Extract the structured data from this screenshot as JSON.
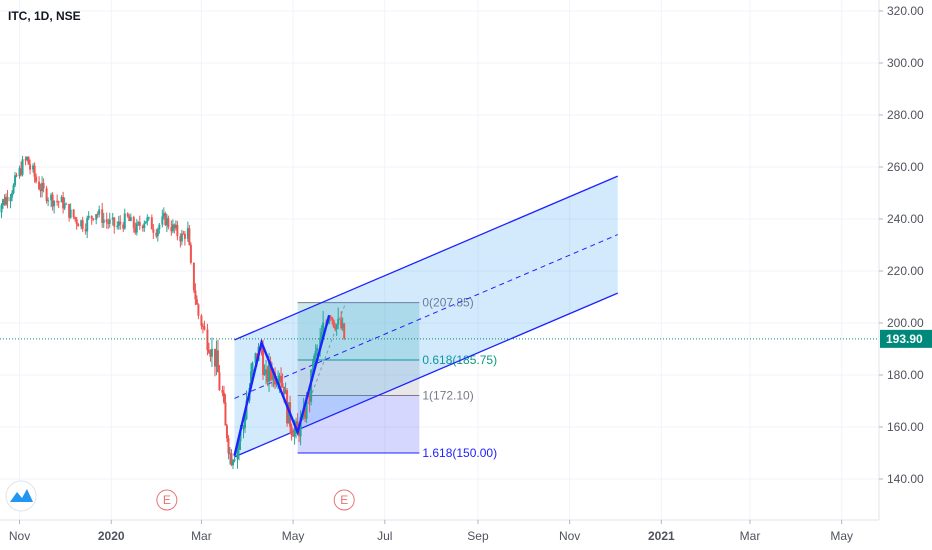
{
  "header": {
    "symbol": "ITC, 1D, NSE"
  },
  "colors": {
    "up": "#26a69a",
    "down": "#ef5350",
    "channel": "#1e22ff",
    "channel_fill": "#cde6fb",
    "pattern": "#1e22ff",
    "fib_0": "#787b86",
    "fib_0618": "#089981",
    "fib_1": "#787b86",
    "fib_1618": "#1e22ff",
    "last_price": "#00897b",
    "earnings": "#e57373"
  },
  "chart_data": {
    "type": "candlestick",
    "ylim": [
      125,
      325
    ],
    "y_ticks": [
      "320.00",
      "300.00",
      "280.00",
      "260.00",
      "240.00",
      "220.00",
      "200.00",
      "180.00",
      "160.00",
      "140.00"
    ],
    "y_tick_values": [
      320,
      300,
      280,
      260,
      240,
      220,
      200,
      180,
      160,
      140
    ],
    "x_ticks": [
      "Nov",
      "2020",
      "Mar",
      "May",
      "Jul",
      "Sep",
      "Nov",
      "2021",
      "Mar",
      "May"
    ],
    "x_tick_dates": [
      "2019-11-01",
      "2020-01-01",
      "2020-03-01",
      "2020-05-01",
      "2020-07-01",
      "2020-09-01",
      "2020-11-01",
      "2021-01-01",
      "2021-03-01",
      "2021-05-01"
    ],
    "xlim": [
      "2019-10-15",
      "2021-06-15"
    ],
    "last_price": {
      "value": 193.9,
      "label": "193.90"
    },
    "close_series": [
      {
        "date": "2019-10-16",
        "close": 243
      },
      {
        "date": "2019-10-22",
        "close": 247
      },
      {
        "date": "2019-10-28",
        "close": 252
      },
      {
        "date": "2019-11-01",
        "close": 258
      },
      {
        "date": "2019-11-06",
        "close": 263
      },
      {
        "date": "2019-11-10",
        "close": 258
      },
      {
        "date": "2019-11-15",
        "close": 252
      },
      {
        "date": "2019-11-22",
        "close": 248
      },
      {
        "date": "2019-11-30",
        "close": 246
      },
      {
        "date": "2019-12-08",
        "close": 240
      },
      {
        "date": "2019-12-15",
        "close": 238
      },
      {
        "date": "2019-12-22",
        "close": 243
      },
      {
        "date": "2019-12-29",
        "close": 239
      },
      {
        "date": "2020-01-05",
        "close": 237
      },
      {
        "date": "2020-01-12",
        "close": 240
      },
      {
        "date": "2020-01-18",
        "close": 236
      },
      {
        "date": "2020-01-24",
        "close": 240
      },
      {
        "date": "2020-01-31",
        "close": 236
      },
      {
        "date": "2020-02-06",
        "close": 240
      },
      {
        "date": "2020-02-12",
        "close": 236
      },
      {
        "date": "2020-02-17",
        "close": 233
      },
      {
        "date": "2020-02-21",
        "close": 235
      },
      {
        "date": "2020-02-26",
        "close": 210
      },
      {
        "date": "2020-03-01",
        "close": 200
      },
      {
        "date": "2020-03-06",
        "close": 193
      },
      {
        "date": "2020-03-11",
        "close": 185
      },
      {
        "date": "2020-03-15",
        "close": 172
      },
      {
        "date": "2020-03-18",
        "close": 158
      },
      {
        "date": "2020-03-21",
        "close": 149
      },
      {
        "date": "2020-03-25",
        "close": 152
      },
      {
        "date": "2020-03-29",
        "close": 160
      },
      {
        "date": "2020-04-02",
        "close": 175
      },
      {
        "date": "2020-04-06",
        "close": 186
      },
      {
        "date": "2020-04-10",
        "close": 190
      },
      {
        "date": "2020-04-13",
        "close": 178
      },
      {
        "date": "2020-04-16",
        "close": 182
      },
      {
        "date": "2020-04-19",
        "close": 180
      },
      {
        "date": "2020-04-22",
        "close": 182
      },
      {
        "date": "2020-04-25",
        "close": 176
      },
      {
        "date": "2020-04-28",
        "close": 165
      },
      {
        "date": "2020-05-01",
        "close": 160
      },
      {
        "date": "2020-05-04",
        "close": 158
      },
      {
        "date": "2020-05-08",
        "close": 163
      },
      {
        "date": "2020-05-12",
        "close": 172
      },
      {
        "date": "2020-05-15",
        "close": 185
      },
      {
        "date": "2020-05-19",
        "close": 192
      },
      {
        "date": "2020-05-23",
        "close": 200
      },
      {
        "date": "2020-05-26",
        "close": 204
      },
      {
        "date": "2020-05-29",
        "close": 200
      },
      {
        "date": "2020-06-02",
        "close": 198
      },
      {
        "date": "2020-06-05",
        "close": 193.9
      }
    ],
    "channel": {
      "upper_start": {
        "date": "2020-03-23",
        "value": 193.5
      },
      "upper_end": {
        "date": "2020-12-03",
        "value": 256.5
      },
      "lower_start": {
        "date": "2020-03-23",
        "value": 148.5
      },
      "lower_end": {
        "date": "2020-12-03",
        "value": 211.5
      }
    },
    "pattern_points": [
      {
        "date": "2020-03-23",
        "value": 149
      },
      {
        "date": "2020-04-10",
        "value": 192.5
      },
      {
        "date": "2020-05-04",
        "value": 158
      },
      {
        "date": "2020-05-25",
        "value": 203
      }
    ],
    "fibonacci": {
      "start": "2020-05-04",
      "end": "2020-07-24",
      "levels": [
        {
          "value": 207.85,
          "label": "0(207.85)"
        },
        {
          "value": 185.75,
          "label": "0.618(185.75)"
        },
        {
          "value": 172.1,
          "label": "1(172.10)"
        },
        {
          "value": 150.0,
          "label": "1.618(150.00)"
        }
      ]
    },
    "events": [
      {
        "date": "2020-02-07",
        "label": "E"
      },
      {
        "date": "2020-06-04",
        "label": "E"
      }
    ]
  }
}
